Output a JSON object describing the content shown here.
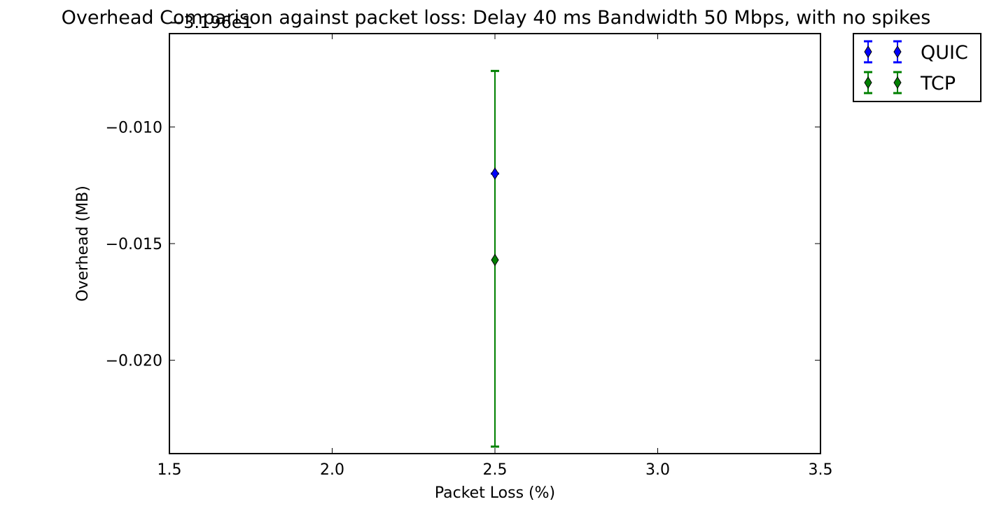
{
  "chart_data": {
    "type": "scatter",
    "title": "Overhead Comparison against packet loss: Delay 40 ms Bandwidth 50 Mbps, with no spikes",
    "xlabel": "Packet Loss (%)",
    "ylabel": "Overhead (MB)",
    "y_offset_label": "−3.196e1",
    "xlim": [
      1.5,
      3.5
    ],
    "ylim": [
      -0.024,
      -0.006
    ],
    "x_ticks": [
      1.5,
      2.0,
      2.5,
      3.0,
      3.5
    ],
    "x_tick_labels": [
      "1.5",
      "2.0",
      "2.5",
      "3.0",
      "3.5"
    ],
    "y_ticks": [
      -0.01,
      -0.015,
      -0.02
    ],
    "y_tick_labels": [
      "−0.010",
      "−0.015",
      "−0.020"
    ],
    "grid": false,
    "legend_position": "outside-top-right",
    "series": [
      {
        "name": "QUIC",
        "color": "#0000ff",
        "marker": "diamond",
        "points": [
          {
            "x": 2.5,
            "y": -0.012,
            "err_low": -0.012,
            "err_high": -0.012
          }
        ]
      },
      {
        "name": "TCP",
        "color": "#008000",
        "marker": "diamond",
        "points": [
          {
            "x": 2.5,
            "y": -0.0157,
            "err_low": -0.0237,
            "err_high": -0.0076
          }
        ]
      }
    ]
  }
}
